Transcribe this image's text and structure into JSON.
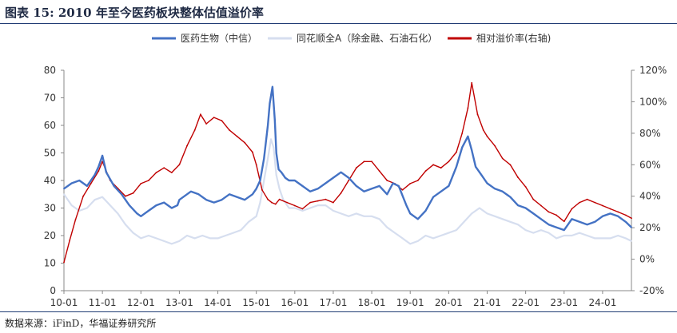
{
  "header": {
    "title": "图表 15:  2010 年至今医药板块整体估值溢价率"
  },
  "footer": {
    "source": "数据来源：iFinD，华福证券研究所"
  },
  "chart_data": {
    "type": "line",
    "title": "图表 15:  2010 年至今医药板块整体估值溢价率",
    "x_ticks": [
      "10-01",
      "11-01",
      "12-01",
      "13-01",
      "14-01",
      "15-01",
      "16-01",
      "17-01",
      "18-01",
      "19-01",
      "20-01",
      "21-01",
      "22-01",
      "23-01",
      "24-01"
    ],
    "x_range": [
      2010.0,
      2024.75
    ],
    "y_left": {
      "ticks": [
        0,
        10,
        20,
        30,
        40,
        50,
        60,
        70,
        80
      ],
      "range": [
        0,
        80
      ]
    },
    "y_right": {
      "ticks": [
        "-20%",
        "0%",
        "20%",
        "40%",
        "60%",
        "80%",
        "100%",
        "120%"
      ],
      "tick_values": [
        -20,
        0,
        20,
        40,
        60,
        80,
        100,
        120
      ],
      "range": [
        -20,
        120
      ],
      "unit": "%"
    },
    "grid": false,
    "legend_position": "top",
    "series": [
      {
        "name": "医药生物（中信）",
        "axis": "left",
        "color": "#4472c4",
        "x": [
          2010.0,
          2010.2,
          2010.4,
          2010.6,
          2010.8,
          2010.9,
          2011.0,
          2011.1,
          2011.3,
          2011.5,
          2011.7,
          2011.9,
          2012.0,
          2012.2,
          2012.4,
          2012.6,
          2012.8,
          2012.95,
          2013.0,
          2013.3,
          2013.5,
          2013.7,
          2013.9,
          2014.1,
          2014.3,
          2014.5,
          2014.7,
          2014.9,
          2015.0,
          2015.1,
          2015.2,
          2015.3,
          2015.35,
          2015.42,
          2015.48,
          2015.52,
          2015.58,
          2015.65,
          2015.75,
          2015.85,
          2016.0,
          2016.2,
          2016.4,
          2016.6,
          2016.8,
          2017.0,
          2017.2,
          2017.4,
          2017.6,
          2017.8,
          2018.0,
          2018.2,
          2018.4,
          2018.55,
          2018.7,
          2018.9,
          2019.0,
          2019.2,
          2019.4,
          2019.6,
          2019.8,
          2020.0,
          2020.2,
          2020.35,
          2020.5,
          2020.6,
          2020.7,
          2020.85,
          2021.0,
          2021.2,
          2021.4,
          2021.6,
          2021.8,
          2022.0,
          2022.2,
          2022.4,
          2022.6,
          2022.8,
          2023.0,
          2023.2,
          2023.4,
          2023.6,
          2023.8,
          2024.0,
          2024.2,
          2024.4,
          2024.6,
          2024.75
        ],
        "values": [
          37,
          39,
          40,
          38,
          42,
          45,
          49,
          43,
          38,
          35,
          31,
          28,
          27,
          29,
          31,
          32,
          30,
          31,
          33,
          36,
          35,
          33,
          32,
          33,
          35,
          34,
          33,
          35,
          37,
          40,
          48,
          60,
          68,
          74,
          62,
          50,
          44,
          43,
          41,
          40,
          40,
          38,
          36,
          37,
          39,
          41,
          43,
          41,
          38,
          36,
          37,
          38,
          35,
          39,
          38,
          31,
          28,
          26,
          29,
          34,
          36,
          38,
          45,
          52,
          56,
          51,
          45,
          42,
          39,
          37,
          36,
          34,
          31,
          30,
          28,
          26,
          24,
          23,
          22,
          26,
          25,
          24,
          25,
          27,
          28,
          27,
          25,
          23
        ]
      },
      {
        "name": "同花顺全A（除金融、石油石化）",
        "axis": "left",
        "color": "#d6deef",
        "x": [
          2010.0,
          2010.2,
          2010.4,
          2010.6,
          2010.8,
          2011.0,
          2011.2,
          2011.4,
          2011.6,
          2011.8,
          2012.0,
          2012.2,
          2012.4,
          2012.6,
          2012.8,
          2013.0,
          2013.2,
          2013.4,
          2013.6,
          2013.8,
          2014.0,
          2014.2,
          2014.4,
          2014.6,
          2014.8,
          2015.0,
          2015.1,
          2015.2,
          2015.3,
          2015.38,
          2015.45,
          2015.52,
          2015.6,
          2015.7,
          2015.85,
          2016.0,
          2016.2,
          2016.4,
          2016.6,
          2016.8,
          2017.0,
          2017.2,
          2017.4,
          2017.6,
          2017.8,
          2018.0,
          2018.2,
          2018.4,
          2018.6,
          2018.8,
          2019.0,
          2019.2,
          2019.4,
          2019.6,
          2019.8,
          2020.0,
          2020.2,
          2020.4,
          2020.6,
          2020.8,
          2021.0,
          2021.2,
          2021.4,
          2021.6,
          2021.8,
          2022.0,
          2022.2,
          2022.4,
          2022.6,
          2022.8,
          2023.0,
          2023.2,
          2023.4,
          2023.6,
          2023.8,
          2024.0,
          2024.2,
          2024.4,
          2024.6,
          2024.75
        ],
        "values": [
          35,
          31,
          29,
          30,
          33,
          34,
          31,
          28,
          24,
          21,
          19,
          20,
          19,
          18,
          17,
          18,
          20,
          19,
          20,
          19,
          19,
          20,
          21,
          22,
          25,
          27,
          32,
          40,
          48,
          55,
          52,
          42,
          37,
          33,
          30,
          30,
          29,
          30,
          31,
          31,
          29,
          28,
          27,
          28,
          27,
          27,
          26,
          23,
          21,
          19,
          17,
          18,
          20,
          19,
          20,
          21,
          22,
          25,
          28,
          30,
          28,
          27,
          26,
          25,
          24,
          22,
          21,
          22,
          21,
          19,
          20,
          20,
          21,
          20,
          19,
          19,
          19,
          20,
          19,
          18
        ]
      },
      {
        "name": "相对溢价率(右轴)",
        "axis": "right",
        "color": "#c00000",
        "x": [
          2010.0,
          2010.15,
          2010.3,
          2010.5,
          2010.7,
          2010.9,
          2011.0,
          2011.2,
          2011.4,
          2011.6,
          2011.8,
          2012.0,
          2012.2,
          2012.4,
          2012.6,
          2012.8,
          2013.0,
          2013.2,
          2013.4,
          2013.55,
          2013.7,
          2013.9,
          2014.1,
          2014.3,
          2014.5,
          2014.7,
          2014.9,
          2015.0,
          2015.15,
          2015.3,
          2015.4,
          2015.5,
          2015.6,
          2015.8,
          2016.0,
          2016.2,
          2016.4,
          2016.6,
          2016.8,
          2017.0,
          2017.2,
          2017.4,
          2017.6,
          2017.8,
          2018.0,
          2018.2,
          2018.4,
          2018.6,
          2018.8,
          2019.0,
          2019.2,
          2019.4,
          2019.6,
          2019.8,
          2020.0,
          2020.2,
          2020.35,
          2020.5,
          2020.6,
          2020.75,
          2020.9,
          2021.0,
          2021.2,
          2021.4,
          2021.6,
          2021.8,
          2022.0,
          2022.2,
          2022.4,
          2022.6,
          2022.8,
          2023.0,
          2023.2,
          2023.4,
          2023.6,
          2023.8,
          2024.0,
          2024.2,
          2024.4,
          2024.6,
          2024.75
        ],
        "values": [
          -2,
          12,
          25,
          40,
          48,
          56,
          62,
          50,
          45,
          40,
          42,
          48,
          50,
          55,
          58,
          55,
          60,
          72,
          82,
          92,
          86,
          90,
          88,
          82,
          78,
          74,
          68,
          60,
          44,
          38,
          36,
          35,
          38,
          36,
          34,
          32,
          36,
          37,
          38,
          36,
          42,
          50,
          58,
          62,
          62,
          56,
          50,
          48,
          44,
          48,
          50,
          56,
          60,
          58,
          62,
          68,
          80,
          96,
          112,
          92,
          82,
          78,
          72,
          64,
          60,
          52,
          46,
          38,
          34,
          30,
          28,
          24,
          32,
          36,
          38,
          36,
          34,
          32,
          30,
          28,
          26
        ]
      }
    ]
  }
}
